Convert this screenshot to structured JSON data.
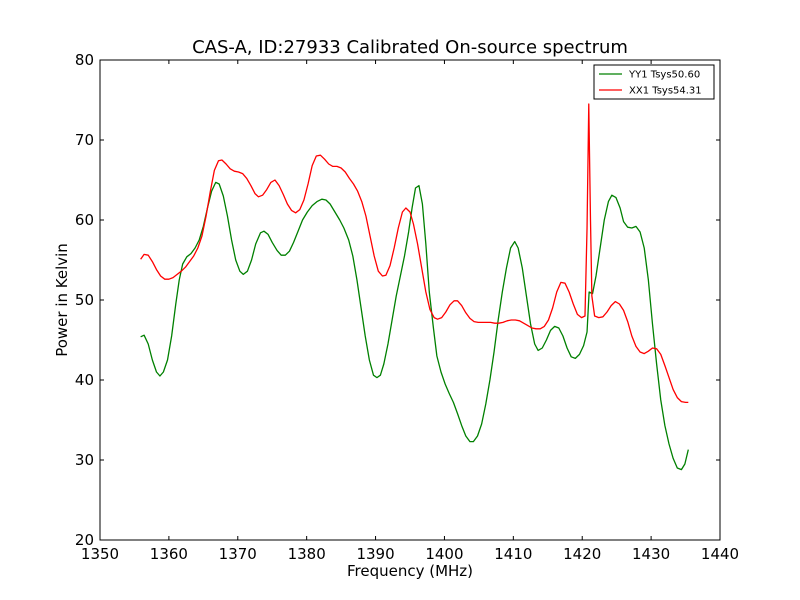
{
  "chart_data": {
    "type": "line",
    "title": "CAS-A, ID:27933 Calibrated On-source spectrum",
    "xlabel": "Frequency (MHz)",
    "ylabel": "Power in Kelvin",
    "xlim": [
      1350,
      1440
    ],
    "ylim": [
      20,
      80
    ],
    "xticks": [
      "1350",
      "1360",
      "1370",
      "1380",
      "1390",
      "1400",
      "1410",
      "1420",
      "1430",
      "1440"
    ],
    "yticks": [
      "20",
      "30",
      "40",
      "50",
      "60",
      "70",
      "80"
    ],
    "grid": false,
    "legend_position": "top-right",
    "series": [
      {
        "name": "YY1 Tsys50.60",
        "color": "#008000",
        "points": [
          [
            1355.9,
            45.4
          ],
          [
            1356.4,
            45.6
          ],
          [
            1357.0,
            44.5
          ],
          [
            1357.6,
            42.5
          ],
          [
            1358.2,
            41.0
          ],
          [
            1358.7,
            40.5
          ],
          [
            1359.2,
            41.0
          ],
          [
            1359.8,
            42.5
          ],
          [
            1360.4,
            45.5
          ],
          [
            1361.0,
            49.5
          ],
          [
            1361.5,
            52.5
          ],
          [
            1362.0,
            54.5
          ],
          [
            1362.6,
            55.4
          ],
          [
            1363.2,
            55.8
          ],
          [
            1363.8,
            56.5
          ],
          [
            1364.4,
            57.5
          ],
          [
            1365.0,
            59.2
          ],
          [
            1365.6,
            61.5
          ],
          [
            1366.2,
            63.6
          ],
          [
            1366.8,
            64.7
          ],
          [
            1367.3,
            64.5
          ],
          [
            1367.9,
            63.0
          ],
          [
            1368.5,
            60.5
          ],
          [
            1369.1,
            57.5
          ],
          [
            1369.7,
            55.0
          ],
          [
            1370.3,
            53.6
          ],
          [
            1370.8,
            53.2
          ],
          [
            1371.4,
            53.6
          ],
          [
            1372.0,
            55.0
          ],
          [
            1372.6,
            57.0
          ],
          [
            1373.3,
            58.4
          ],
          [
            1373.8,
            58.6
          ],
          [
            1374.4,
            58.2
          ],
          [
            1375.0,
            57.2
          ],
          [
            1375.7,
            56.2
          ],
          [
            1376.3,
            55.6
          ],
          [
            1376.9,
            55.6
          ],
          [
            1377.5,
            56.1
          ],
          [
            1378.1,
            57.2
          ],
          [
            1378.8,
            58.7
          ],
          [
            1379.4,
            60.0
          ],
          [
            1380.1,
            61.0
          ],
          [
            1380.8,
            61.8
          ],
          [
            1381.5,
            62.3
          ],
          [
            1382.2,
            62.6
          ],
          [
            1382.8,
            62.5
          ],
          [
            1383.4,
            62.0
          ],
          [
            1384.1,
            61.0
          ],
          [
            1384.8,
            60.0
          ],
          [
            1385.4,
            59.0
          ],
          [
            1386.1,
            57.5
          ],
          [
            1386.7,
            55.5
          ],
          [
            1387.3,
            52.5
          ],
          [
            1387.9,
            49.0
          ],
          [
            1388.5,
            45.5
          ],
          [
            1389.1,
            42.5
          ],
          [
            1389.7,
            40.6
          ],
          [
            1390.2,
            40.3
          ],
          [
            1390.7,
            40.6
          ],
          [
            1391.2,
            42.0
          ],
          [
            1391.8,
            44.5
          ],
          [
            1392.4,
            47.5
          ],
          [
            1393.0,
            50.5
          ],
          [
            1393.6,
            53.0
          ],
          [
            1394.2,
            55.5
          ],
          [
            1394.8,
            58.5
          ],
          [
            1395.3,
            61.5
          ],
          [
            1395.8,
            64.0
          ],
          [
            1396.3,
            64.3
          ],
          [
            1396.8,
            62.0
          ],
          [
            1397.3,
            57.0
          ],
          [
            1397.8,
            51.0
          ],
          [
            1398.4,
            46.5
          ],
          [
            1398.9,
            43.0
          ],
          [
            1399.5,
            41.0
          ],
          [
            1400.1,
            39.5
          ],
          [
            1400.7,
            38.3
          ],
          [
            1401.3,
            37.2
          ],
          [
            1401.9,
            35.8
          ],
          [
            1402.5,
            34.3
          ],
          [
            1403.1,
            33.0
          ],
          [
            1403.7,
            32.3
          ],
          [
            1404.2,
            32.3
          ],
          [
            1404.8,
            33.0
          ],
          [
            1405.4,
            34.5
          ],
          [
            1406.0,
            37.0
          ],
          [
            1406.6,
            40.0
          ],
          [
            1407.2,
            43.5
          ],
          [
            1407.8,
            47.5
          ],
          [
            1408.4,
            51.0
          ],
          [
            1409.0,
            54.0
          ],
          [
            1409.6,
            56.5
          ],
          [
            1410.2,
            57.3
          ],
          [
            1410.7,
            56.5
          ],
          [
            1411.3,
            54.0
          ],
          [
            1411.9,
            50.5
          ],
          [
            1412.5,
            47.0
          ],
          [
            1413.1,
            44.5
          ],
          [
            1413.6,
            43.7
          ],
          [
            1414.2,
            44.0
          ],
          [
            1414.8,
            45.0
          ],
          [
            1415.4,
            46.2
          ],
          [
            1416.0,
            46.7
          ],
          [
            1416.6,
            46.5
          ],
          [
            1417.2,
            45.5
          ],
          [
            1417.8,
            44.0
          ],
          [
            1418.4,
            42.9
          ],
          [
            1419.0,
            42.7
          ],
          [
            1419.6,
            43.2
          ],
          [
            1420.2,
            44.3
          ],
          [
            1420.7,
            46.0
          ],
          [
            1421.0,
            51.0
          ],
          [
            1421.5,
            50.8
          ],
          [
            1422.0,
            53.0
          ],
          [
            1422.6,
            56.5
          ],
          [
            1423.2,
            60.0
          ],
          [
            1423.8,
            62.3
          ],
          [
            1424.3,
            63.1
          ],
          [
            1424.9,
            62.8
          ],
          [
            1425.5,
            61.5
          ],
          [
            1426.0,
            59.8
          ],
          [
            1426.6,
            59.1
          ],
          [
            1427.2,
            59.0
          ],
          [
            1427.8,
            59.2
          ],
          [
            1428.4,
            58.5
          ],
          [
            1429.0,
            56.5
          ],
          [
            1429.6,
            52.5
          ],
          [
            1430.2,
            47.0
          ],
          [
            1430.8,
            42.0
          ],
          [
            1431.4,
            37.5
          ],
          [
            1432.0,
            34.3
          ],
          [
            1432.6,
            32.0
          ],
          [
            1433.2,
            30.2
          ],
          [
            1433.8,
            29.0
          ],
          [
            1434.4,
            28.8
          ],
          [
            1434.9,
            29.5
          ],
          [
            1435.4,
            31.3
          ]
        ]
      },
      {
        "name": "XX1 Tsys54.31",
        "color": "#ff0000",
        "points": [
          [
            1355.9,
            55.1
          ],
          [
            1356.4,
            55.7
          ],
          [
            1357.0,
            55.6
          ],
          [
            1357.6,
            54.8
          ],
          [
            1358.2,
            53.8
          ],
          [
            1358.8,
            53.0
          ],
          [
            1359.4,
            52.6
          ],
          [
            1360.0,
            52.6
          ],
          [
            1360.6,
            52.8
          ],
          [
            1361.2,
            53.2
          ],
          [
            1361.8,
            53.6
          ],
          [
            1362.4,
            54.1
          ],
          [
            1363.0,
            54.8
          ],
          [
            1363.6,
            55.5
          ],
          [
            1364.2,
            56.5
          ],
          [
            1364.8,
            58.0
          ],
          [
            1365.4,
            60.5
          ],
          [
            1366.0,
            63.5
          ],
          [
            1366.6,
            66.2
          ],
          [
            1367.2,
            67.4
          ],
          [
            1367.7,
            67.5
          ],
          [
            1368.3,
            67.0
          ],
          [
            1368.9,
            66.4
          ],
          [
            1369.5,
            66.1
          ],
          [
            1370.1,
            66.0
          ],
          [
            1370.7,
            65.8
          ],
          [
            1371.3,
            65.2
          ],
          [
            1371.9,
            64.3
          ],
          [
            1372.5,
            63.3
          ],
          [
            1373.0,
            62.9
          ],
          [
            1373.6,
            63.1
          ],
          [
            1374.2,
            63.8
          ],
          [
            1374.8,
            64.7
          ],
          [
            1375.4,
            65.0
          ],
          [
            1376.0,
            64.3
          ],
          [
            1376.6,
            63.2
          ],
          [
            1377.2,
            62.0
          ],
          [
            1377.8,
            61.2
          ],
          [
            1378.4,
            60.9
          ],
          [
            1379.0,
            61.3
          ],
          [
            1379.6,
            62.5
          ],
          [
            1380.2,
            64.5
          ],
          [
            1380.8,
            66.8
          ],
          [
            1381.4,
            68.0
          ],
          [
            1382.0,
            68.1
          ],
          [
            1382.6,
            67.6
          ],
          [
            1383.2,
            67.0
          ],
          [
            1383.8,
            66.7
          ],
          [
            1384.4,
            66.7
          ],
          [
            1385.0,
            66.5
          ],
          [
            1385.6,
            66.0
          ],
          [
            1386.2,
            65.2
          ],
          [
            1386.8,
            64.5
          ],
          [
            1387.4,
            63.6
          ],
          [
            1388.0,
            62.3
          ],
          [
            1388.6,
            60.5
          ],
          [
            1389.2,
            58.0
          ],
          [
            1389.8,
            55.5
          ],
          [
            1390.4,
            53.6
          ],
          [
            1391.0,
            53.0
          ],
          [
            1391.5,
            53.1
          ],
          [
            1392.1,
            54.3
          ],
          [
            1392.7,
            56.5
          ],
          [
            1393.3,
            59.0
          ],
          [
            1393.9,
            61.0
          ],
          [
            1394.4,
            61.5
          ],
          [
            1395.0,
            61.0
          ],
          [
            1395.5,
            59.5
          ],
          [
            1396.1,
            57.0
          ],
          [
            1396.7,
            54.0
          ],
          [
            1397.3,
            51.0
          ],
          [
            1397.9,
            48.8
          ],
          [
            1398.5,
            47.8
          ],
          [
            1399.0,
            47.6
          ],
          [
            1399.6,
            47.8
          ],
          [
            1400.2,
            48.5
          ],
          [
            1400.8,
            49.4
          ],
          [
            1401.4,
            49.9
          ],
          [
            1401.9,
            49.9
          ],
          [
            1402.5,
            49.3
          ],
          [
            1403.1,
            48.4
          ],
          [
            1403.7,
            47.7
          ],
          [
            1404.3,
            47.3
          ],
          [
            1404.9,
            47.2
          ],
          [
            1405.5,
            47.2
          ],
          [
            1406.1,
            47.2
          ],
          [
            1406.7,
            47.2
          ],
          [
            1407.3,
            47.1
          ],
          [
            1407.9,
            47.1
          ],
          [
            1408.5,
            47.2
          ],
          [
            1409.1,
            47.4
          ],
          [
            1409.7,
            47.5
          ],
          [
            1410.3,
            47.5
          ],
          [
            1410.9,
            47.4
          ],
          [
            1411.5,
            47.1
          ],
          [
            1412.1,
            46.8
          ],
          [
            1412.7,
            46.5
          ],
          [
            1413.3,
            46.4
          ],
          [
            1413.9,
            46.4
          ],
          [
            1414.5,
            46.7
          ],
          [
            1415.1,
            47.5
          ],
          [
            1415.7,
            49.0
          ],
          [
            1416.3,
            51.0
          ],
          [
            1416.9,
            52.2
          ],
          [
            1417.5,
            52.1
          ],
          [
            1418.1,
            51.0
          ],
          [
            1418.7,
            49.5
          ],
          [
            1419.3,
            48.2
          ],
          [
            1419.9,
            47.8
          ],
          [
            1420.4,
            48.0
          ],
          [
            1420.7,
            59.0
          ],
          [
            1420.95,
            74.5
          ],
          [
            1421.2,
            60.0
          ],
          [
            1421.4,
            50.5
          ],
          [
            1421.8,
            48.0
          ],
          [
            1422.4,
            47.8
          ],
          [
            1423.0,
            47.9
          ],
          [
            1423.6,
            48.5
          ],
          [
            1424.2,
            49.3
          ],
          [
            1424.8,
            49.8
          ],
          [
            1425.4,
            49.5
          ],
          [
            1426.0,
            48.7
          ],
          [
            1426.6,
            47.3
          ],
          [
            1427.2,
            45.5
          ],
          [
            1427.8,
            44.2
          ],
          [
            1428.4,
            43.5
          ],
          [
            1429.0,
            43.3
          ],
          [
            1429.6,
            43.6
          ],
          [
            1430.2,
            44.0
          ],
          [
            1430.8,
            43.9
          ],
          [
            1431.4,
            43.2
          ],
          [
            1432.0,
            41.8
          ],
          [
            1432.6,
            40.3
          ],
          [
            1433.2,
            38.8
          ],
          [
            1433.8,
            37.8
          ],
          [
            1434.4,
            37.3
          ],
          [
            1435.0,
            37.2
          ],
          [
            1435.4,
            37.2
          ]
        ]
      }
    ]
  }
}
